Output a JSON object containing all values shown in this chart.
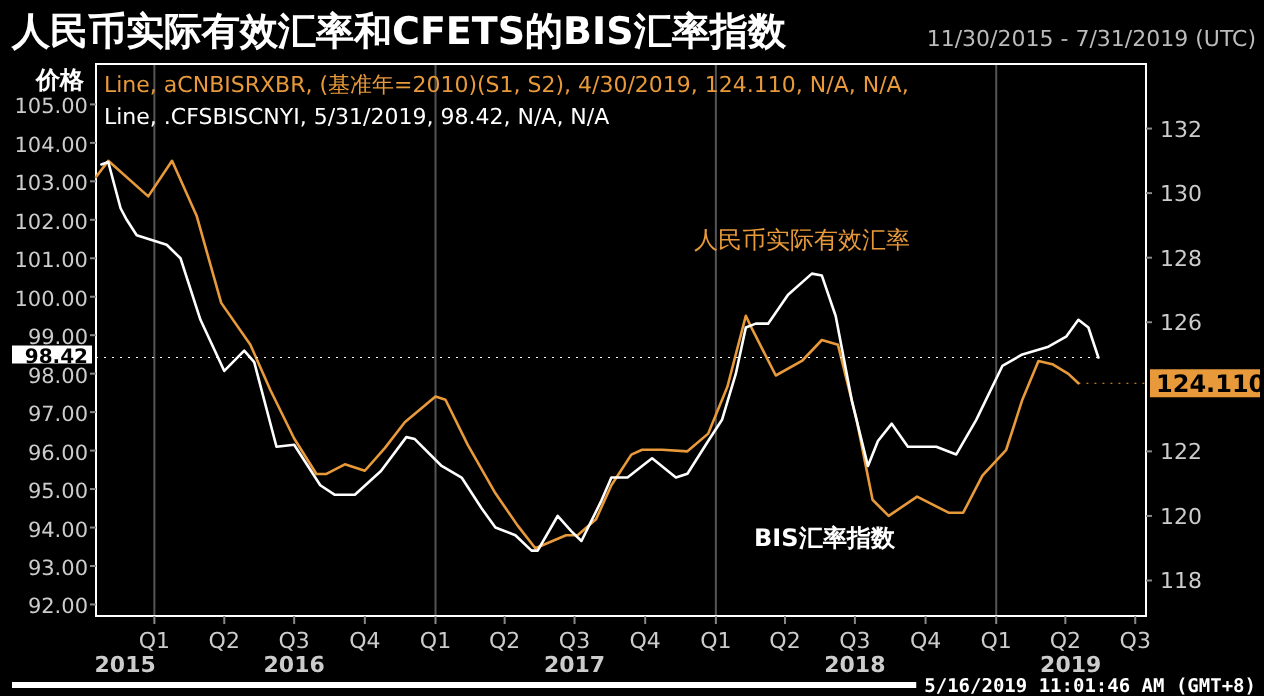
{
  "chart_data": {
    "type": "line",
    "title": "人民币实际有效汇率和CFETS的BIS汇率指数",
    "subtitle": "11/30/2015 - 7/31/2019 (UTC)",
    "ylabel": "价格",
    "xlim": [
      "2015-10-17",
      "2019-07-15"
    ],
    "xticks": [
      {
        "value": "2016-01-01",
        "label": "Q1"
      },
      {
        "value": "2016-04-01",
        "label": "Q2"
      },
      {
        "value": "2016-07-01",
        "label": "Q3"
      },
      {
        "value": "2016-10-01",
        "label": "Q4"
      },
      {
        "value": "2017-01-01",
        "label": "Q1"
      },
      {
        "value": "2017-04-01",
        "label": "Q2"
      },
      {
        "value": "2017-07-01",
        "label": "Q3"
      },
      {
        "value": "2017-10-01",
        "label": "Q4"
      },
      {
        "value": "2018-01-01",
        "label": "Q1"
      },
      {
        "value": "2018-04-01",
        "label": "Q2"
      },
      {
        "value": "2018-07-01",
        "label": "Q3"
      },
      {
        "value": "2018-10-01",
        "label": "Q4"
      },
      {
        "value": "2019-01-01",
        "label": "Q1"
      },
      {
        "value": "2019-04-01",
        "label": "Q2"
      },
      {
        "value": "2019-07-01",
        "label": "Q3"
      }
    ],
    "x2lim": [
      "2015-10-17",
      "2019-07-15"
    ],
    "x2ticks": [
      {
        "value": "2015-11-24",
        "label": "2015"
      },
      {
        "value": "2016-07-01",
        "label": "2016"
      },
      {
        "value": "2017-07-01",
        "label": "2017"
      },
      {
        "value": "2018-07-01",
        "label": "2018"
      },
      {
        "value": "2019-04-08",
        "label": "2019"
      }
    ],
    "ylim": [
      91.7,
      106.05
    ],
    "yticks": [
      {
        "value": 92,
        "label": "92.00"
      },
      {
        "value": 93,
        "label": "93.00"
      },
      {
        "value": 94,
        "label": "94.00"
      },
      {
        "value": 95,
        "label": "95.00"
      },
      {
        "value": 96,
        "label": "96.00"
      },
      {
        "value": 97,
        "label": "97.00"
      },
      {
        "value": 98,
        "label": "98.00"
      },
      {
        "value": 99,
        "label": "99.00"
      },
      {
        "value": 100,
        "label": "100.00"
      },
      {
        "value": 101,
        "label": "101.00"
      },
      {
        "value": 102,
        "label": "102.00"
      },
      {
        "value": 103,
        "label": "103.00"
      },
      {
        "value": 104,
        "label": "104.00"
      },
      {
        "value": 105,
        "label": "105.00"
      }
    ],
    "y2lim": [
      116.9,
      134.0
    ],
    "y2ticks": [
      118,
      120,
      122,
      126,
      128,
      130,
      132
    ],
    "ref_lines": [
      {
        "axis": "x",
        "value": "2016-01-01",
        "color": "#555555"
      },
      {
        "axis": "x",
        "value": "2017-01-01",
        "color": "#555555"
      },
      {
        "axis": "x",
        "value": "2018-01-01",
        "color": "#555555"
      },
      {
        "axis": "x",
        "value": "2019-01-01",
        "color": "#555555"
      }
    ],
    "series": [
      {
        "color": "#e89a3a",
        "axis": "y2",
        "x": [
          "2015-10-17",
          "2015-11-02",
          "2015-12-24",
          "2016-01-24",
          "2016-02-25",
          "2016-03-28",
          "2016-05-05",
          "2016-05-31",
          "2016-07-01",
          "2016-07-30",
          "2016-08-12",
          "2016-09-05",
          "2016-10-01",
          "2016-10-27",
          "2016-11-22",
          "2017-01-01",
          "2017-01-14",
          "2017-02-12",
          "2017-03-20",
          "2017-04-18",
          "2017-05-11",
          "2017-06-20",
          "2017-07-05",
          "2017-07-29",
          "2017-08-18",
          "2017-09-13",
          "2017-09-27",
          "2017-10-23",
          "2017-11-25",
          "2017-12-22",
          "2018-01-16",
          "2018-02-09",
          "2018-02-17",
          "2018-03-20",
          "2018-04-23",
          "2018-05-19",
          "2018-06-09",
          "2018-07-03",
          "2018-07-24",
          "2018-08-14",
          "2018-09-20",
          "2018-10-31",
          "2018-11-19",
          "2018-12-14",
          "2019-01-14",
          "2019-02-04",
          "2019-02-25",
          "2019-03-15",
          "2019-04-05",
          "2019-04-18"
        ],
        "values": [
          130.5,
          131.0,
          129.9,
          131.0,
          129.3,
          126.6,
          125.3,
          123.9,
          122.4,
          121.3,
          121.3,
          121.6,
          121.4,
          122.1,
          122.9,
          123.7,
          123.6,
          122.2,
          120.7,
          119.7,
          119.0,
          119.4,
          119.4,
          119.9,
          120.95,
          121.9,
          122.05,
          122.05,
          122.0,
          122.55,
          124.0,
          126.2,
          125.8,
          124.35,
          124.8,
          125.45,
          125.3,
          123.0,
          120.5,
          120.0,
          120.6,
          120.1,
          120.1,
          121.25,
          122.05,
          123.6,
          124.8,
          124.7,
          124.4,
          124.11
        ],
        "value_labels": [
          null,
          null,
          null,
          null,
          null,
          null,
          null,
          null,
          null,
          null,
          null,
          null,
          null,
          null,
          null,
          null,
          null,
          null,
          null,
          null,
          null,
          null,
          null,
          null,
          null,
          null,
          null,
          null,
          null,
          null,
          null,
          null,
          null,
          null,
          null,
          null,
          null,
          null,
          null,
          null,
          null,
          null,
          null,
          null,
          null,
          null,
          null,
          null,
          null,
          "124.110"
        ]
      },
      {
        "color": "#ffffff",
        "x": [
          "2015-10-24",
          "2015-11-02",
          "2015-11-18",
          "2015-11-26",
          "2015-12-09",
          "2016-01-17",
          "2016-02-04",
          "2016-03-01",
          "2016-04-01",
          "2016-04-27",
          "2016-05-10",
          "2016-06-08",
          "2016-07-01",
          "2016-08-04",
          "2016-08-23",
          "2016-09-18",
          "2016-10-22",
          "2016-11-24",
          "2016-12-05",
          "2017-01-09",
          "2017-02-04",
          "2017-03-02",
          "2017-03-20",
          "2017-04-15",
          "2017-05-06",
          "2017-05-14",
          "2017-06-09",
          "2017-06-27",
          "2017-07-10",
          "2017-08-05",
          "2017-08-18",
          "2017-09-08",
          "2017-09-27",
          "2017-10-10",
          "2017-11-10",
          "2017-11-25",
          "2017-12-22",
          "2018-01-09",
          "2018-01-27",
          "2018-02-09",
          "2018-02-22",
          "2018-03-10",
          "2018-04-05",
          "2018-05-06",
          "2018-05-19",
          "2018-06-06",
          "2018-06-27",
          "2018-07-18",
          "2018-07-31",
          "2018-08-18",
          "2018-09-08",
          "2018-10-15",
          "2018-11-10",
          "2018-12-06",
          "2019-01-09",
          "2019-02-04",
          "2019-03-10",
          "2019-04-02",
          "2019-04-18",
          "2019-05-01",
          "2019-05-14"
        ],
        "values": [
          103.44,
          103.5,
          102.3,
          102.0,
          101.6,
          101.35,
          101.0,
          99.4,
          98.07,
          98.6,
          98.3,
          96.1,
          96.15,
          95.1,
          94.85,
          94.85,
          95.47,
          96.35,
          96.3,
          95.6,
          95.3,
          94.5,
          94.0,
          93.8,
          93.4,
          93.4,
          94.3,
          93.9,
          93.65,
          94.7,
          95.3,
          95.3,
          95.6,
          95.8,
          95.3,
          95.4,
          96.25,
          96.8,
          98.0,
          99.2,
          99.3,
          99.3,
          100.05,
          100.6,
          100.55,
          99.5,
          97.3,
          95.6,
          96.25,
          96.7,
          96.1,
          96.1,
          95.9,
          96.8,
          98.2,
          98.5,
          98.7,
          98.96,
          99.4,
          99.2,
          98.42
        ],
        "value_labels": [
          null,
          null,
          null,
          null,
          null,
          null,
          null,
          null,
          null,
          null,
          null,
          null,
          null,
          null,
          null,
          null,
          null,
          null,
          null,
          null,
          null,
          null,
          null,
          null,
          null,
          null,
          null,
          null,
          null,
          null,
          null,
          null,
          null,
          null,
          null,
          null,
          null,
          null,
          null,
          null,
          null,
          null,
          null,
          null,
          null,
          null,
          null,
          null,
          null,
          null,
          null,
          null,
          null,
          null,
          null,
          null,
          null,
          null,
          null,
          null,
          "98.42"
        ]
      }
    ],
    "annotations": [
      "Line, aCNBISRXBR, (基准年=2010)(S1, S2), 4/30/2019, 124.110, N/A, N/A,",
      "Line, .CFSBISCNYI, 5/31/2019, 98.42, N/A, N/A",
      "5/16/2019 11:01:46 AM  (GMT+8)",
      "人民币实际有效汇率",
      "BIS汇率指数"
    ]
  }
}
